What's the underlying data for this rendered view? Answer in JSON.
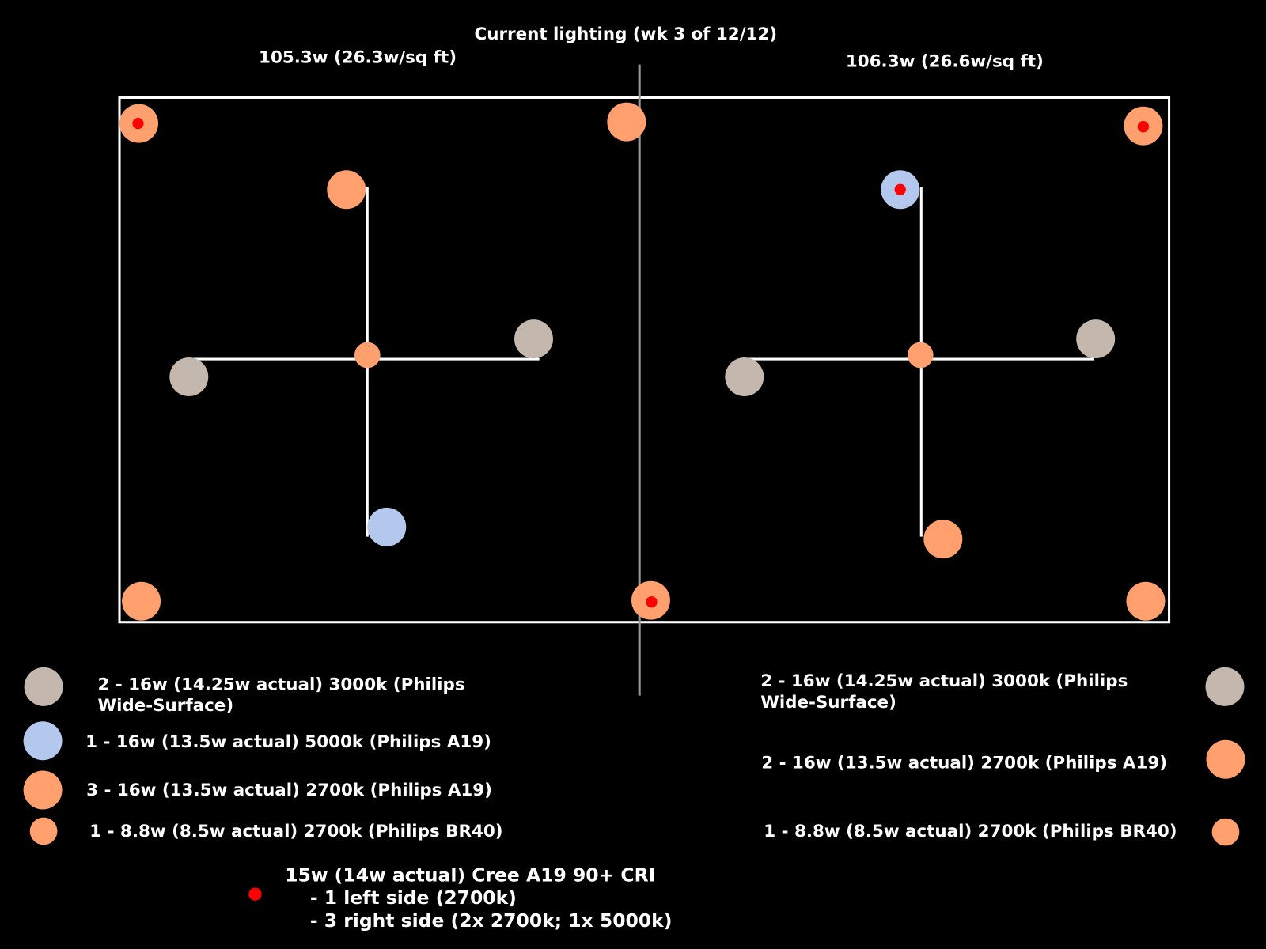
{
  "title": "Current lighting (wk 3 of 12/12)",
  "left": {
    "heading": "105.3w (26.3w/sq ft)",
    "legend": [
      {
        "lines": [
          "2 - 16w (14.25w actual) 3000k (Philips",
          "Wide-Surface)"
        ]
      },
      {
        "lines": [
          "1 - 16w (13.5w actual) 5000k (Philips A19)"
        ]
      },
      {
        "lines": [
          "3 - 16w (13.5w actual) 2700k (Philips A19)"
        ]
      },
      {
        "lines": [
          "1 - 8.8w (8.5w actual) 2700k (Philips BR40)"
        ]
      }
    ]
  },
  "right": {
    "heading": "106.3w (26.6w/sq ft)",
    "legend": [
      {
        "lines": [
          "2 - 16w (14.25w actual) 3000k (Philips",
          "Wide-Surface)"
        ]
      },
      {
        "lines": [
          "2 - 16w (13.5w actual) 2700k (Philips A19)"
        ]
      },
      {
        "lines": [
          "1 - 8.8w (8.5w actual) 2700k (Philips BR40)"
        ]
      }
    ]
  },
  "cree": {
    "lines": [
      "15w (14w actual) Cree A19 90+ CRI",
      "- 1 left side (2700k)",
      "- 3 right side (2x 2700k; 1x 5000k)"
    ]
  }
}
